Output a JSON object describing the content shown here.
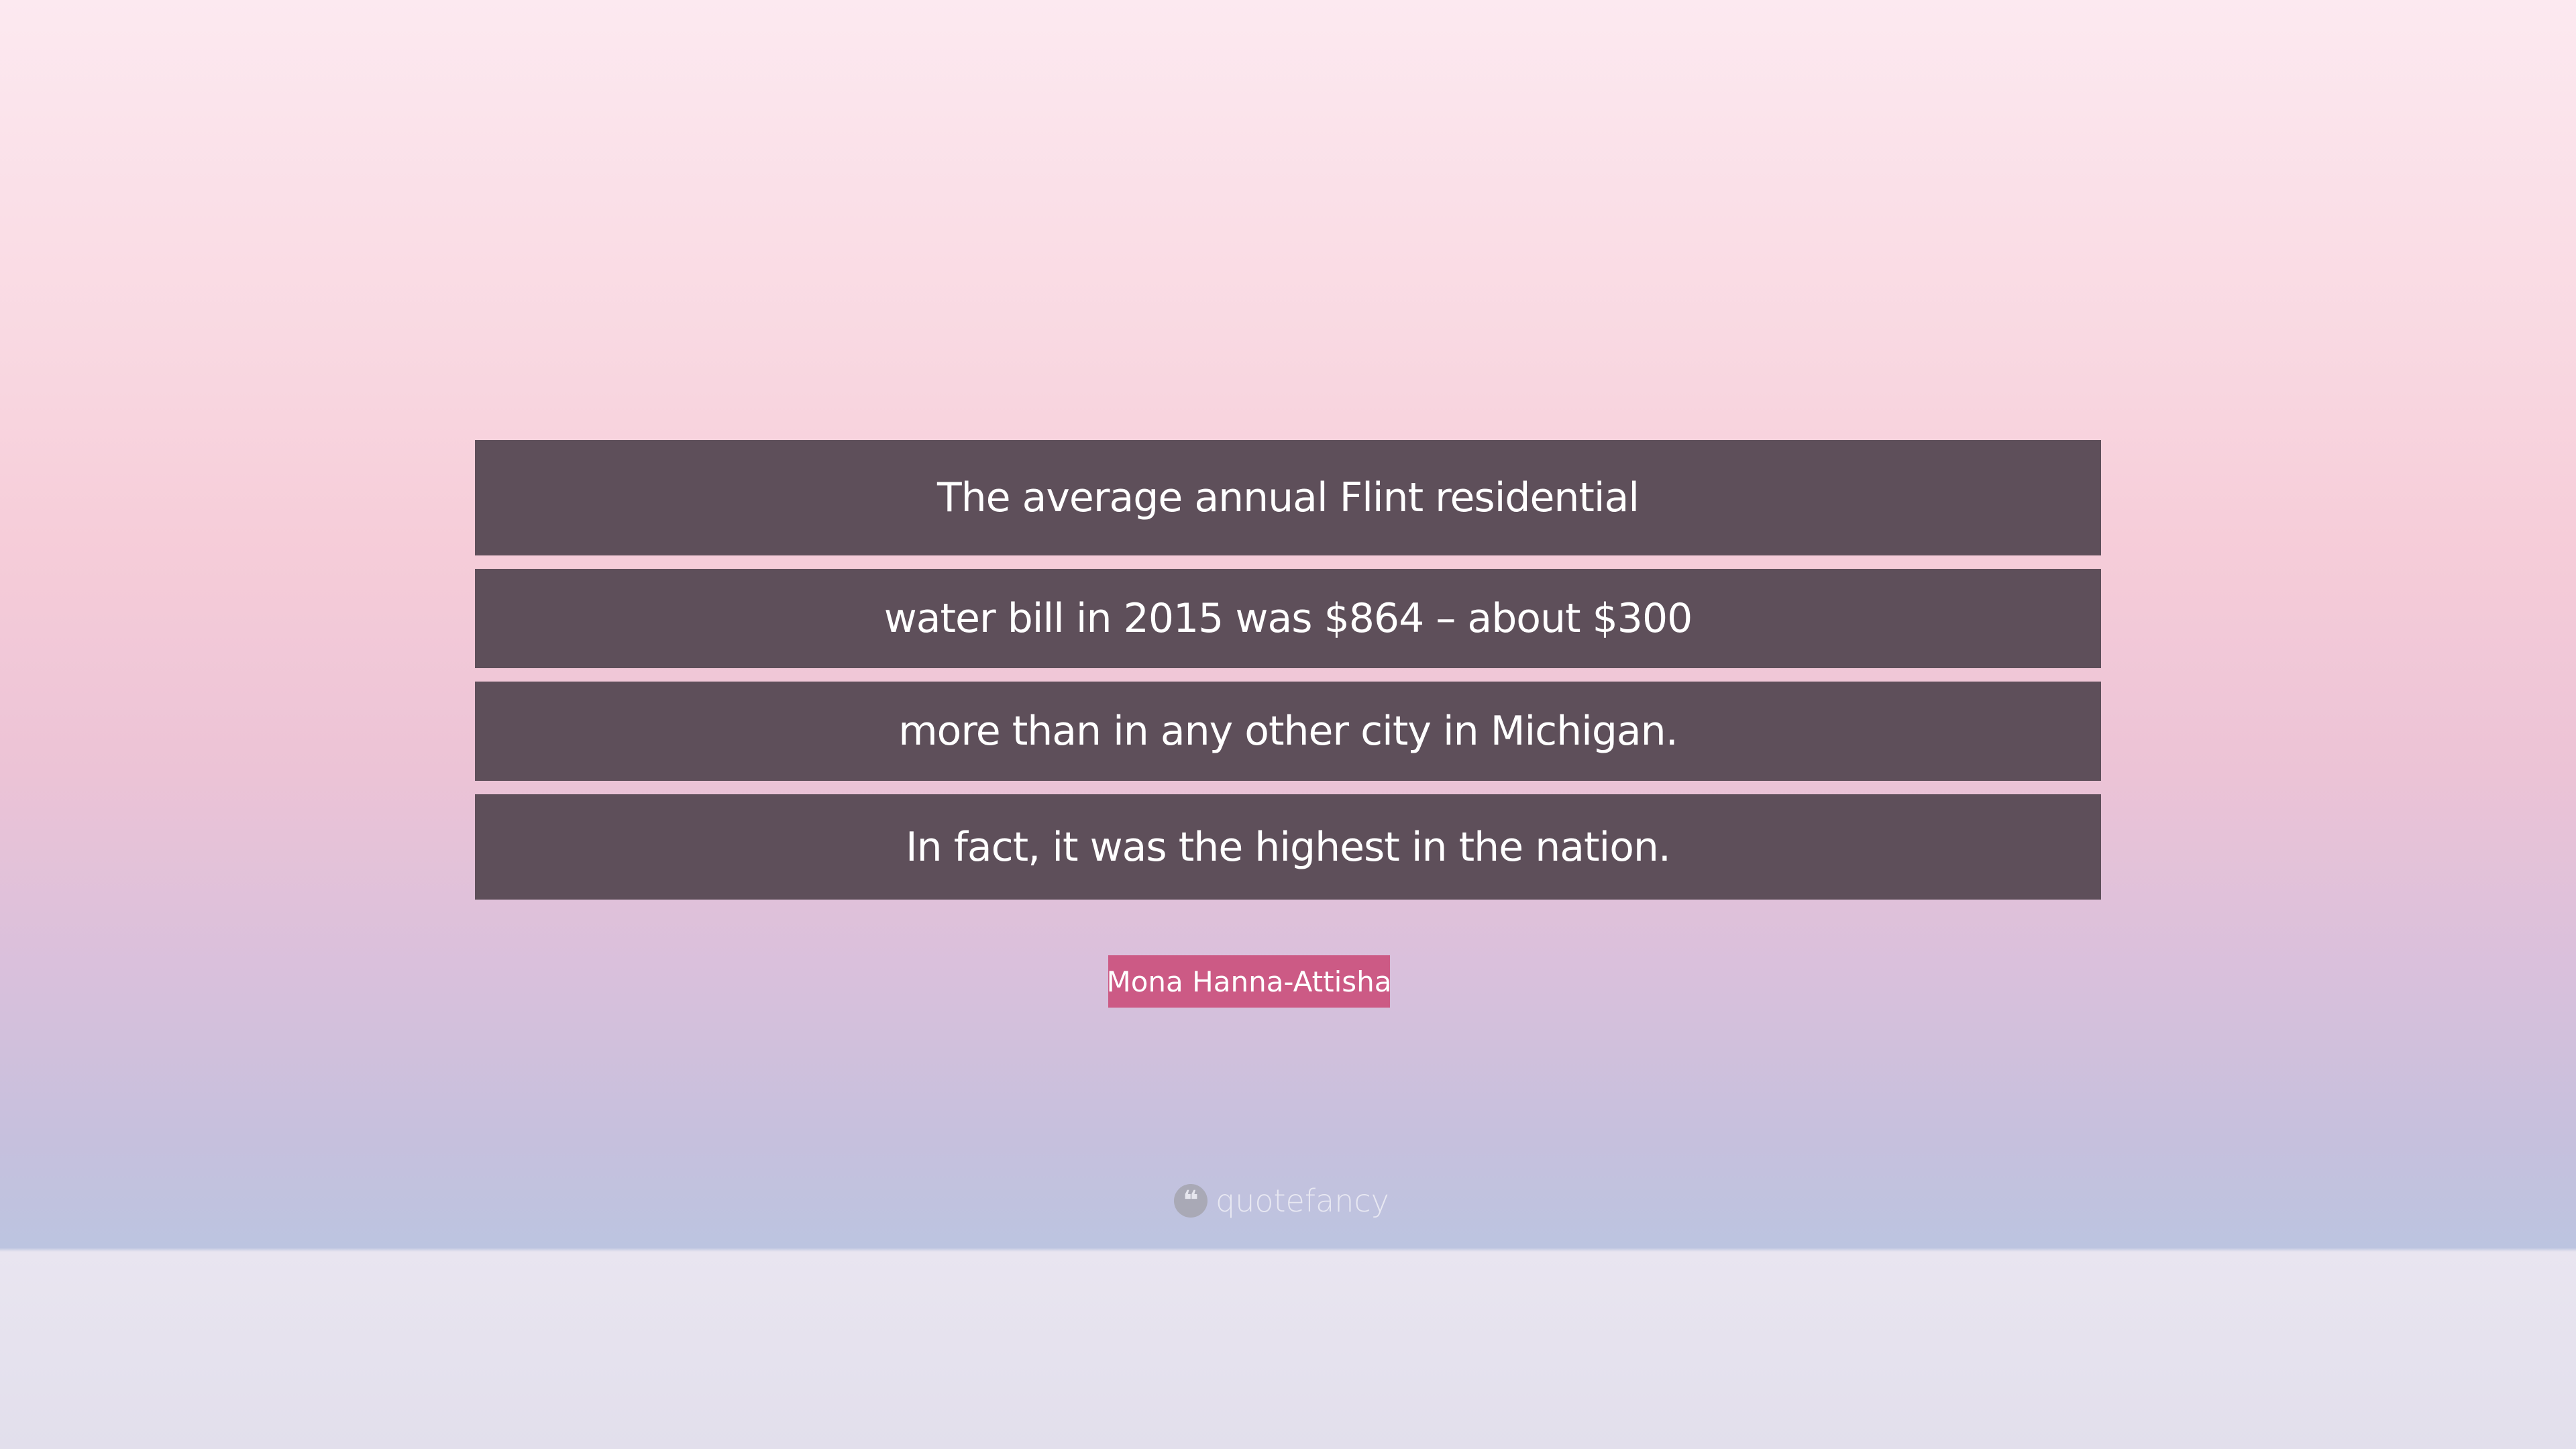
{
  "quote": {
    "lines": [
      "The average annual Flint residential",
      "water bill in 2015 was $864 – about $300",
      "more than in any other city in Michigan.",
      "In fact, it was the highest in the nation."
    ]
  },
  "author": "Mona Hanna-Attisha",
  "logo": {
    "icon": "quote-mark-icon",
    "text": "quotefancy"
  },
  "colors": {
    "quote_box": "#5e4f5a",
    "author_box": "#cc5a85"
  }
}
